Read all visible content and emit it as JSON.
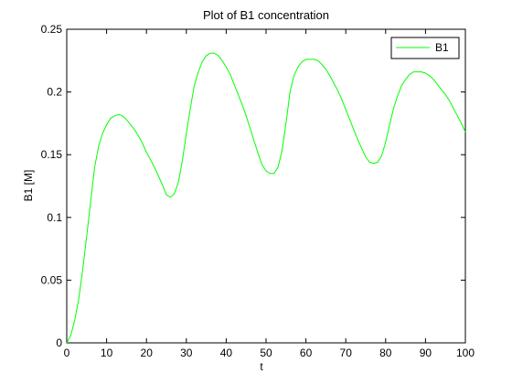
{
  "chart_data": {
    "type": "line",
    "title": "Plot of B1 concentration",
    "xlabel": "t",
    "ylabel": "B1 [M]",
    "xlim": [
      0,
      100
    ],
    "ylim": [
      0,
      0.25
    ],
    "xticks": [
      0,
      10,
      20,
      30,
      40,
      50,
      60,
      70,
      80,
      90,
      100
    ],
    "xtick_labels": [
      "0",
      "10",
      "20",
      "30",
      "40",
      "50",
      "60",
      "70",
      "80",
      "90",
      "100"
    ],
    "yticks": [
      0,
      0.05,
      0.1,
      0.15,
      0.2,
      0.25
    ],
    "ytick_labels": [
      "0",
      "0.05",
      "0.1",
      "0.15",
      "0.2",
      "0.25"
    ],
    "grid": false,
    "legend_position": "top-right",
    "series": [
      {
        "name": "B1",
        "color": "#00ff00",
        "x": [
          0,
          1,
          2,
          3,
          4,
          5,
          6,
          7,
          8,
          9,
          10,
          11,
          12,
          13,
          14,
          15,
          16,
          17,
          18,
          19,
          20,
          21,
          22,
          23,
          24,
          25,
          26,
          27,
          28,
          29,
          30,
          31,
          32,
          33,
          34,
          35,
          36,
          37,
          38,
          39,
          40,
          41,
          42,
          43,
          44,
          45,
          46,
          47,
          48,
          49,
          50,
          51,
          52,
          53,
          54,
          55,
          56,
          57,
          58,
          59,
          60,
          61,
          62,
          63,
          64,
          65,
          66,
          67,
          68,
          69,
          70,
          71,
          72,
          73,
          74,
          75,
          76,
          77,
          78,
          79,
          80,
          81,
          82,
          83,
          84,
          85,
          86,
          87,
          88,
          89,
          90,
          91,
          92,
          93,
          94,
          95,
          96,
          97,
          98,
          99,
          100
        ],
        "y": [
          0.0,
          0.006,
          0.018,
          0.035,
          0.058,
          0.085,
          0.113,
          0.14,
          0.157,
          0.167,
          0.174,
          0.179,
          0.181,
          0.182,
          0.181,
          0.178,
          0.174,
          0.17,
          0.165,
          0.159,
          0.152,
          0.146,
          0.14,
          0.133,
          0.126,
          0.118,
          0.116,
          0.119,
          0.128,
          0.145,
          0.167,
          0.187,
          0.205,
          0.216,
          0.224,
          0.229,
          0.231,
          0.231,
          0.229,
          0.225,
          0.22,
          0.214,
          0.206,
          0.198,
          0.19,
          0.181,
          0.171,
          0.161,
          0.151,
          0.142,
          0.137,
          0.135,
          0.135,
          0.14,
          0.153,
          0.175,
          0.2,
          0.213,
          0.22,
          0.224,
          0.226,
          0.226,
          0.226,
          0.225,
          0.222,
          0.218,
          0.213,
          0.207,
          0.201,
          0.194,
          0.186,
          0.178,
          0.17,
          0.162,
          0.155,
          0.148,
          0.144,
          0.143,
          0.144,
          0.149,
          0.16,
          0.174,
          0.187,
          0.197,
          0.205,
          0.21,
          0.214,
          0.216,
          0.216,
          0.216,
          0.215,
          0.213,
          0.21,
          0.206,
          0.202,
          0.198,
          0.193,
          0.187,
          0.181,
          0.175,
          0.168
        ]
      }
    ]
  }
}
